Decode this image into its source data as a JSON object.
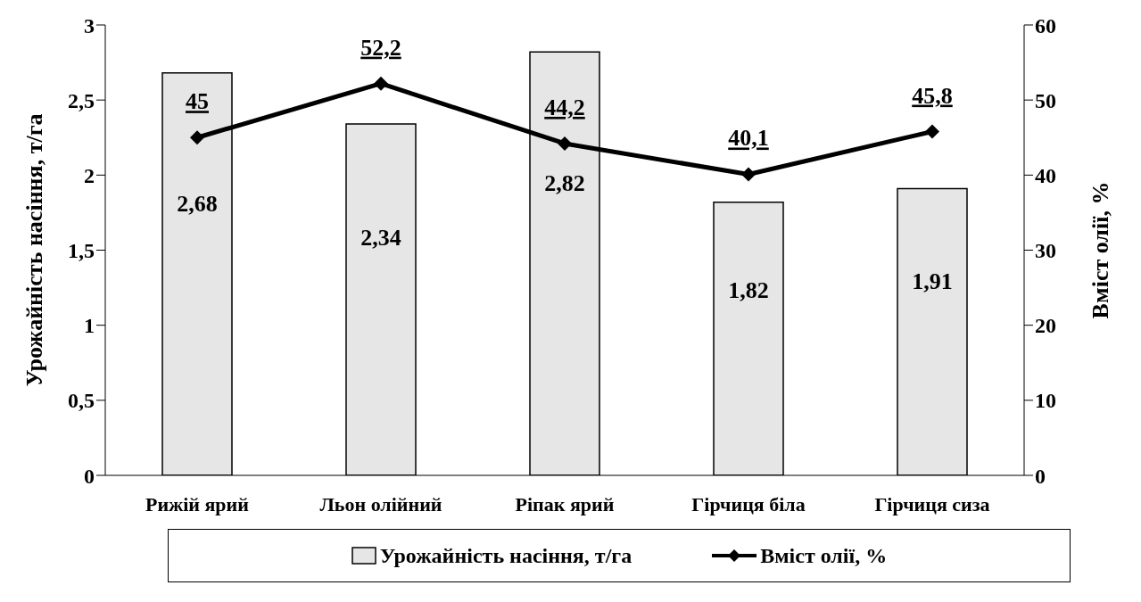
{
  "chart_data": {
    "type": "bar",
    "categories": [
      "Рижій ярий",
      "Льон олійний",
      "Ріпак ярий",
      "Гірчиця біла",
      "Гірчиця сиза"
    ],
    "ylabel": "Урожайність насіння, т/га",
    "y2label": "Вміст олії, %",
    "ylim": [
      0,
      3
    ],
    "yticks": [
      0,
      {
        "value": 0.5,
        "label": "0,5"
      },
      1,
      {
        "value": 1.5,
        "label": "1,5"
      },
      2,
      {
        "value": 2.5,
        "label": "2,5"
      },
      3
    ],
    "y2lim": [
      0,
      60
    ],
    "y2ticks": [
      0,
      10,
      20,
      30,
      40,
      50,
      60
    ],
    "series": [
      {
        "name": "Урожайність насіння, т/га",
        "color": "#e6e6e6",
        "values": [
          2.68,
          2.34,
          2.82,
          1.82,
          1.91
        ],
        "value_labels": [
          "2,68",
          "2,34",
          "2,82",
          "1,82",
          "1,91"
        ]
      },
      {
        "name": "Вміст олії, %",
        "type": "line",
        "axis": "y2",
        "color": "#000000",
        "values": [
          45,
          52.2,
          44.2,
          40.1,
          45.8
        ],
        "value_labels": [
          "45",
          "52,2",
          "44,2",
          "40,1",
          "45,8"
        ]
      }
    ],
    "legend": "bottom",
    "marker": "diamond",
    "line_style": "solid",
    "grid": false
  }
}
